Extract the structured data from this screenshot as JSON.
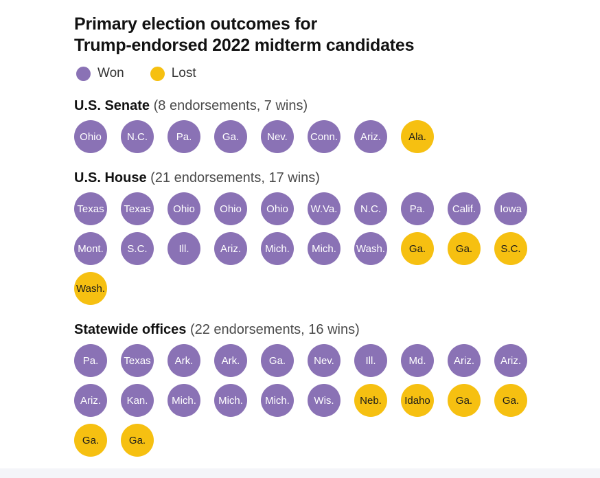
{
  "title": {
    "line1": "Primary election outcomes for",
    "line2": "Trump-endorsed 2022 midterm candidates"
  },
  "colors": {
    "won": "#8a72b5",
    "lost": "#f6c011",
    "won_text": "#ffffff",
    "lost_text": "#1a1a1a",
    "title_text": "#121212",
    "subtitle_text": "#4a4a4a",
    "background": "#ffffff",
    "footer_strip": "#f4f5f9"
  },
  "chart_data": {
    "type": "table",
    "subtype": "unit_pictograph",
    "title": "Primary election outcomes for Trump-endorsed 2022 midterm candidates",
    "legend_position": "top",
    "columns_per_row": 10,
    "legend_entries": [
      {
        "label": "Won",
        "color": "#8a72b5"
      },
      {
        "label": "Lost",
        "color": "#f6c011"
      }
    ],
    "groups": [
      {
        "label": "U.S. Senate",
        "subtitle": "(8 endorsements, 7 wins)",
        "endorsements": 8,
        "wins": 7,
        "units": [
          {
            "state": "Ohio",
            "result": "won"
          },
          {
            "state": "N.C.",
            "result": "won"
          },
          {
            "state": "Pa.",
            "result": "won"
          },
          {
            "state": "Ga.",
            "result": "won"
          },
          {
            "state": "Nev.",
            "result": "won"
          },
          {
            "state": "Conn.",
            "result": "won"
          },
          {
            "state": "Ariz.",
            "result": "won"
          },
          {
            "state": "Ala.",
            "result": "lost"
          }
        ]
      },
      {
        "label": "U.S. House",
        "subtitle": "(21 endorsements, 17 wins)",
        "endorsements": 21,
        "wins": 17,
        "units": [
          {
            "state": "Texas",
            "result": "won"
          },
          {
            "state": "Texas",
            "result": "won"
          },
          {
            "state": "Ohio",
            "result": "won"
          },
          {
            "state": "Ohio",
            "result": "won"
          },
          {
            "state": "Ohio",
            "result": "won"
          },
          {
            "state": "W.Va.",
            "result": "won"
          },
          {
            "state": "N.C.",
            "result": "won"
          },
          {
            "state": "Pa.",
            "result": "won"
          },
          {
            "state": "Calif.",
            "result": "won"
          },
          {
            "state": "Iowa",
            "result": "won"
          },
          {
            "state": "Mont.",
            "result": "won"
          },
          {
            "state": "S.C.",
            "result": "won"
          },
          {
            "state": "Ill.",
            "result": "won"
          },
          {
            "state": "Ariz.",
            "result": "won"
          },
          {
            "state": "Mich.",
            "result": "won"
          },
          {
            "state": "Mich.",
            "result": "won"
          },
          {
            "state": "Wash.",
            "result": "won"
          },
          {
            "state": "Ga.",
            "result": "lost"
          },
          {
            "state": "Ga.",
            "result": "lost"
          },
          {
            "state": "S.C.",
            "result": "lost"
          },
          {
            "state": "Wash.",
            "result": "lost"
          }
        ]
      },
      {
        "label": "Statewide offices",
        "subtitle": "(22 endorsements, 16 wins)",
        "endorsements": 22,
        "wins": 16,
        "units": [
          {
            "state": "Pa.",
            "result": "won"
          },
          {
            "state": "Texas",
            "result": "won"
          },
          {
            "state": "Ark.",
            "result": "won"
          },
          {
            "state": "Ark.",
            "result": "won"
          },
          {
            "state": "Ga.",
            "result": "won"
          },
          {
            "state": "Nev.",
            "result": "won"
          },
          {
            "state": "Ill.",
            "result": "won"
          },
          {
            "state": "Md.",
            "result": "won"
          },
          {
            "state": "Ariz.",
            "result": "won"
          },
          {
            "state": "Ariz.",
            "result": "won"
          },
          {
            "state": "Ariz.",
            "result": "won"
          },
          {
            "state": "Kan.",
            "result": "won"
          },
          {
            "state": "Mich.",
            "result": "won"
          },
          {
            "state": "Mich.",
            "result": "won"
          },
          {
            "state": "Mich.",
            "result": "won"
          },
          {
            "state": "Wis.",
            "result": "won"
          },
          {
            "state": "Neb.",
            "result": "lost"
          },
          {
            "state": "Idaho",
            "result": "lost"
          },
          {
            "state": "Ga.",
            "result": "lost"
          },
          {
            "state": "Ga.",
            "result": "lost"
          },
          {
            "state": "Ga.",
            "result": "lost"
          },
          {
            "state": "Ga.",
            "result": "lost"
          }
        ]
      }
    ]
  }
}
